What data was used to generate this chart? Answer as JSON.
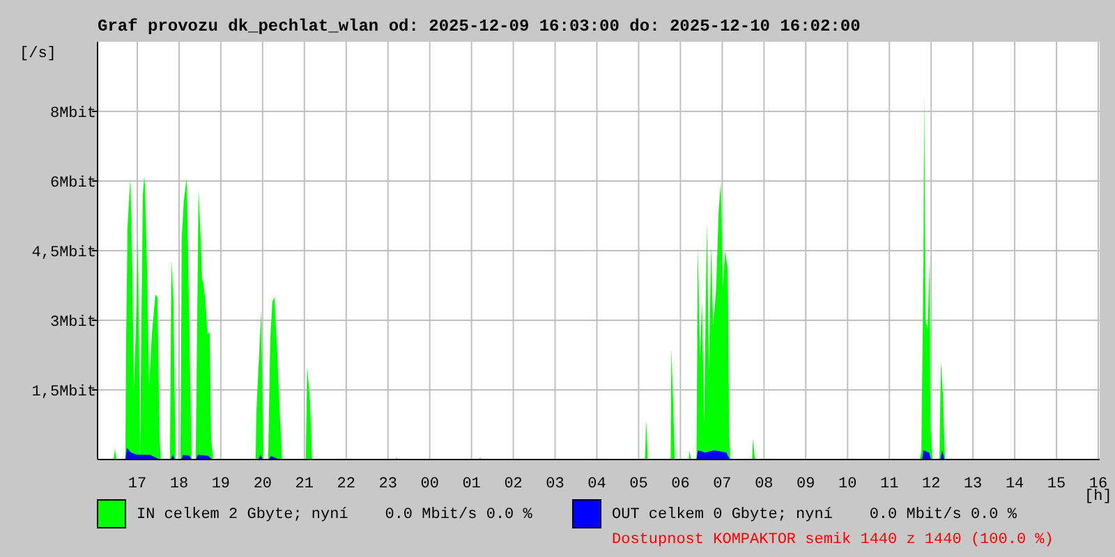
{
  "chart_data": {
    "type": "area",
    "title": "Graf provozu dk_pechlat_wlan od: 2025-12-09 16:03:00 do: 2025-12-10 16:02:00",
    "xlabel": "[h]",
    "ylabel": "[/s]",
    "xlim": [
      "2025-12-09T16:03",
      "2025-12-10T16:02"
    ],
    "ylim": [
      0,
      9
    ],
    "xticks": [
      {
        "value": "2025-12-09T17:00",
        "label": "17"
      },
      {
        "value": "2025-12-09T18:00",
        "label": "18"
      },
      {
        "value": "2025-12-09T19:00",
        "label": "19"
      },
      {
        "value": "2025-12-09T20:00",
        "label": "20"
      },
      {
        "value": "2025-12-09T21:00",
        "label": "21"
      },
      {
        "value": "2025-12-09T22:00",
        "label": "22"
      },
      {
        "value": "2025-12-09T23:00",
        "label": "23"
      },
      {
        "value": "2025-12-10T00:00",
        "label": "00"
      },
      {
        "value": "2025-12-10T01:00",
        "label": "01"
      },
      {
        "value": "2025-12-10T02:00",
        "label": "02"
      },
      {
        "value": "2025-12-10T03:00",
        "label": "03"
      },
      {
        "value": "2025-12-10T04:00",
        "label": "04"
      },
      {
        "value": "2025-12-10T05:00",
        "label": "05"
      },
      {
        "value": "2025-12-10T06:00",
        "label": "06"
      },
      {
        "value": "2025-12-10T07:00",
        "label": "07"
      },
      {
        "value": "2025-12-10T08:00",
        "label": "08"
      },
      {
        "value": "2025-12-10T09:00",
        "label": "09"
      },
      {
        "value": "2025-12-10T10:00",
        "label": "10"
      },
      {
        "value": "2025-12-10T11:00",
        "label": "11"
      },
      {
        "value": "2025-12-10T12:00",
        "label": "12"
      },
      {
        "value": "2025-12-10T13:00",
        "label": "13"
      },
      {
        "value": "2025-12-10T14:00",
        "label": "14"
      },
      {
        "value": "2025-12-10T15:00",
        "label": "15"
      },
      {
        "value": "2025-12-10T16:00",
        "label": "16"
      }
    ],
    "yticks": [
      {
        "value": 1.5,
        "label": "1,5Mbit"
      },
      {
        "value": 3,
        "label": "3Mbit"
      },
      {
        "value": 4.5,
        "label": "4,5Mbit"
      },
      {
        "value": 6,
        "label": "6Mbit"
      },
      {
        "value": 7.5,
        "label": "8Mbit"
      }
    ],
    "grid": true,
    "legend": "bottom",
    "series": [
      {
        "name": "IN celkem 2 Gbyte; nyní    0.0 Mbit/s 0.0 %",
        "color": "#00ff00",
        "x": [
          "2025-12-09T16:03",
          "2025-12-09T16:26",
          "2025-12-09T16:28",
          "2025-12-09T16:30",
          "2025-12-09T16:43",
          "2025-12-09T16:44",
          "2025-12-09T16:46",
          "2025-12-09T16:50",
          "2025-12-09T16:53",
          "2025-12-09T16:55",
          "2025-12-09T16:58",
          "2025-12-09T17:01",
          "2025-12-09T17:04",
          "2025-12-09T17:06",
          "2025-12-09T17:08",
          "2025-12-09T17:10",
          "2025-12-09T17:11",
          "2025-12-09T17:14",
          "2025-12-09T17:17",
          "2025-12-09T17:21",
          "2025-12-09T17:26",
          "2025-12-09T17:29",
          "2025-12-09T17:32",
          "2025-12-09T17:34",
          "2025-12-09T17:47",
          "2025-12-09T17:49",
          "2025-12-09T17:52",
          "2025-12-09T17:55",
          "2025-12-09T18:02",
          "2025-12-09T18:04",
          "2025-12-09T18:07",
          "2025-12-09T18:11",
          "2025-12-09T18:13",
          "2025-12-09T18:16",
          "2025-12-09T18:18",
          "2025-12-09T18:24",
          "2025-12-09T18:28",
          "2025-12-09T18:31",
          "2025-12-09T18:33",
          "2025-12-09T18:35",
          "2025-12-09T18:38",
          "2025-12-09T18:41",
          "2025-12-09T18:44",
          "2025-12-09T18:46",
          "2025-12-09T18:49",
          "2025-12-09T19:50",
          "2025-12-09T19:51",
          "2025-12-09T19:58",
          "2025-12-09T20:01",
          "2025-12-09T20:08",
          "2025-12-09T20:11",
          "2025-12-09T20:14",
          "2025-12-09T20:17",
          "2025-12-09T20:21",
          "2025-12-09T20:25",
          "2025-12-09T20:28",
          "2025-12-09T21:02",
          "2025-12-09T21:04",
          "2025-12-09T21:08",
          "2025-12-09T21:11",
          "2025-12-09T23:11",
          "2025-12-09T23:12",
          "2025-12-09T23:14",
          "2025-12-10T01:11",
          "2025-12-10T01:12",
          "2025-12-10T01:14",
          "2025-12-10T05:09",
          "2025-12-10T05:11",
          "2025-12-10T05:13",
          "2025-12-10T05:46",
          "2025-12-10T05:47",
          "2025-12-10T05:50",
          "2025-12-10T05:52",
          "2025-12-10T06:12",
          "2025-12-10T06:13",
          "2025-12-10T06:15",
          "2025-12-10T06:23",
          "2025-12-10T06:25",
          "2025-12-10T06:28",
          "2025-12-10T06:31",
          "2025-12-10T06:34",
          "2025-12-10T06:38",
          "2025-12-10T06:41",
          "2025-12-10T06:44",
          "2025-12-10T06:47",
          "2025-12-10T06:51",
          "2025-12-10T06:55",
          "2025-12-10T06:58",
          "2025-12-10T07:01",
          "2025-12-10T07:04",
          "2025-12-10T07:08",
          "2025-12-10T07:10",
          "2025-12-10T07:12",
          "2025-12-10T07:43",
          "2025-12-10T07:44",
          "2025-12-10T07:47",
          "2025-12-10T11:44",
          "2025-12-10T11:46",
          "2025-12-10T11:49",
          "2025-12-10T11:50",
          "2025-12-10T11:52",
          "2025-12-10T11:55",
          "2025-12-10T11:58",
          "2025-12-10T11:59",
          "2025-12-10T12:02",
          "2025-12-10T12:12",
          "2025-12-10T12:14",
          "2025-12-10T12:17",
          "2025-12-10T12:19",
          "2025-12-10T12:20",
          "2025-12-10T16:02"
        ],
        "values": [
          0,
          0,
          0.24,
          0,
          0,
          2.5,
          5.0,
          6.06,
          4.0,
          1.5,
          2.8,
          4.8,
          0,
          3.0,
          5.7,
          6.1,
          5.9,
          4.2,
          1.6,
          2.7,
          3.55,
          3.5,
          0.5,
          0,
          0,
          4.3,
          3.4,
          0,
          0,
          4.8,
          5.6,
          6.06,
          4.5,
          1.8,
          0,
          0,
          5.8,
          4.8,
          3.9,
          3.8,
          3.4,
          2.7,
          2.75,
          0.5,
          0,
          0,
          1.0,
          3.2,
          0,
          0,
          2.6,
          3.4,
          3.5,
          2.3,
          0.9,
          0,
          0,
          2.0,
          1.3,
          0,
          0,
          0.05,
          0,
          0,
          0.05,
          0,
          0,
          0.85,
          0,
          0,
          2.4,
          1.0,
          0,
          0,
          0.2,
          0,
          0,
          4.6,
          2.2,
          3.4,
          0.7,
          5.1,
          1.9,
          4.6,
          2.9,
          3.6,
          5.4,
          5.95,
          3.7,
          4.5,
          4.1,
          0.5,
          0,
          0,
          0.45,
          0,
          0,
          0.2,
          4.3,
          7.9,
          3.0,
          2.8,
          4.3,
          0.65,
          0,
          0,
          2.1,
          1.4,
          0.4,
          0,
          0
        ]
      },
      {
        "name": "OUT celkem 0 Gbyte; nyní    0.0 Mbit/s 0.0 %",
        "color": "#0000ff",
        "x": [
          "2025-12-09T16:03",
          "2025-12-09T16:43",
          "2025-12-09T16:45",
          "2025-12-09T16:51",
          "2025-12-09T17:00",
          "2025-12-09T17:18",
          "2025-12-09T17:33",
          "2025-12-09T17:48",
          "2025-12-09T17:51",
          "2025-12-09T17:54",
          "2025-12-09T18:03",
          "2025-12-09T18:06",
          "2025-12-09T18:15",
          "2025-12-09T18:18",
          "2025-12-09T18:24",
          "2025-12-09T18:27",
          "2025-12-09T18:42",
          "2025-12-09T18:48",
          "2025-12-09T19:54",
          "2025-12-09T19:57",
          "2025-12-09T20:00",
          "2025-12-09T20:09",
          "2025-12-09T20:12",
          "2025-12-09T20:24",
          "2025-12-10T06:23",
          "2025-12-10T06:25",
          "2025-12-10T06:36",
          "2025-12-10T06:48",
          "2025-12-10T07:06",
          "2025-12-10T07:11",
          "2025-12-10T11:47",
          "2025-12-10T11:49",
          "2025-12-10T11:57",
          "2025-12-10T12:00",
          "2025-12-10T12:13",
          "2025-12-10T12:16",
          "2025-12-10T12:19",
          "2025-12-10T16:02"
        ],
        "values": [
          0,
          0,
          0.25,
          0.15,
          0.1,
          0.1,
          0,
          0,
          0.1,
          0,
          0,
          0.1,
          0.08,
          0,
          0,
          0.1,
          0.08,
          0,
          0,
          0.1,
          0,
          0,
          0.08,
          0,
          0,
          0.2,
          0.15,
          0.2,
          0.15,
          0,
          0,
          0.2,
          0.15,
          0,
          0,
          0.2,
          0,
          0
        ]
      }
    ],
    "annotations": [
      "Dostupnost KOMPAKTOR semik 1440 z 1440 (100.0 %)"
    ]
  }
}
